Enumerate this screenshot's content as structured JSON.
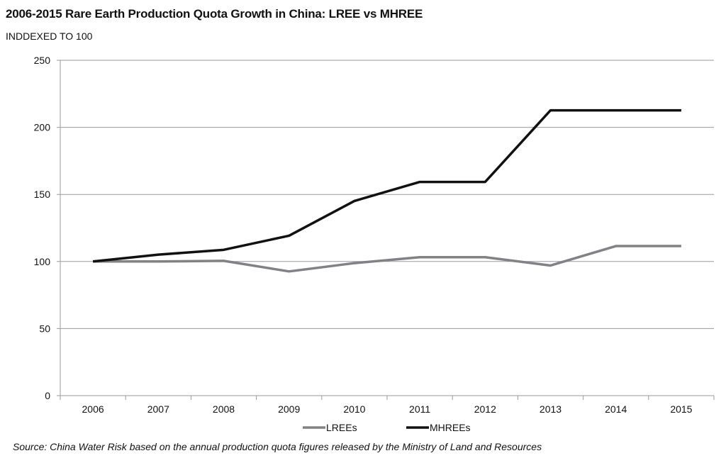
{
  "chart_data": {
    "type": "line",
    "title": "2006-2015 Rare Earth Production Quota Growth in China: LREE vs MHREE",
    "subtitle": "INDDEXED TO 100",
    "source": "Source: China Water Risk based on the annual production quota figures released by the Ministry of Land and Resources",
    "xlabel": "",
    "ylabel": "",
    "categories": [
      "2006",
      "2007",
      "2008",
      "2009",
      "2010",
      "2011",
      "2012",
      "2013",
      "2014",
      "2015"
    ],
    "ylim": [
      0,
      250
    ],
    "yticks": [
      0,
      50,
      100,
      150,
      200,
      250
    ],
    "grid": true,
    "legend": "bottom",
    "series": [
      {
        "name": "LREEs",
        "color": "#808285",
        "values": [
          100,
          100,
          100.5,
          92.6,
          98.8,
          103.2,
          103.2,
          97,
          111.5,
          111.5
        ]
      },
      {
        "name": "MHREEs",
        "color": "#111111",
        "values": [
          100,
          105.1,
          108.7,
          119.2,
          145.1,
          159.3,
          159.3,
          212.7,
          212.7,
          212.7
        ]
      }
    ]
  }
}
